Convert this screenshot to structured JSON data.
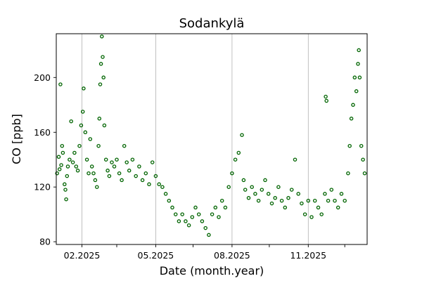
{
  "chart_data": {
    "type": "scatter",
    "title": "Sodankylä",
    "xlabel": "Date (month.year)",
    "ylabel": "CO [ppb]",
    "x_ticks": [
      {
        "date": "2025-02-01",
        "label": "02.2025"
      },
      {
        "date": "2025-03-15",
        "label": ""
      },
      {
        "date": "2025-05-01",
        "label": "05.2025"
      },
      {
        "date": "2025-06-15",
        "label": ""
      },
      {
        "date": "2025-08-01",
        "label": "08.2025"
      },
      {
        "date": "2025-09-15",
        "label": ""
      },
      {
        "date": "2025-11-01",
        "label": "11.2025"
      },
      {
        "date": "2025-12-15",
        "label": ""
      }
    ],
    "x_grid_dates": [
      "2025-02-01",
      "2025-05-01",
      "2025-08-01",
      "2025-11-01"
    ],
    "y_ticks": [
      80,
      120,
      160,
      200
    ],
    "xlim": [
      "2025-01-01",
      "2026-01-11"
    ],
    "ylim": [
      78,
      232
    ],
    "grid": "vertical lines at labeled ticks",
    "marker": "hollow circle",
    "series_color": "#006400",
    "series": [
      {
        "points": [
          [
            "2025-01-02",
            130
          ],
          [
            "2025-01-04",
            142
          ],
          [
            "2025-01-05",
            133
          ],
          [
            "2025-01-06",
            195
          ],
          [
            "2025-01-07",
            136
          ],
          [
            "2025-01-08",
            150
          ],
          [
            "2025-01-09",
            145
          ],
          [
            "2025-01-11",
            122
          ],
          [
            "2025-01-12",
            118
          ],
          [
            "2025-01-13",
            111
          ],
          [
            "2025-01-14",
            128
          ],
          [
            "2025-01-15",
            135
          ],
          [
            "2025-01-17",
            140
          ],
          [
            "2025-01-19",
            168
          ],
          [
            "2025-01-21",
            138
          ],
          [
            "2025-01-23",
            145
          ],
          [
            "2025-01-25",
            135
          ],
          [
            "2025-01-27",
            132
          ],
          [
            "2025-01-29",
            150
          ],
          [
            "2025-01-31",
            165
          ],
          [
            "2025-02-02",
            175
          ],
          [
            "2025-02-03",
            192
          ],
          [
            "2025-02-05",
            160
          ],
          [
            "2025-02-07",
            140
          ],
          [
            "2025-02-09",
            130
          ],
          [
            "2025-02-11",
            155
          ],
          [
            "2025-02-13",
            135
          ],
          [
            "2025-02-15",
            130
          ],
          [
            "2025-02-17",
            125
          ],
          [
            "2025-02-19",
            120
          ],
          [
            "2025-02-21",
            150
          ],
          [
            "2025-02-22",
            170
          ],
          [
            "2025-02-23",
            195
          ],
          [
            "2025-02-24",
            210
          ],
          [
            "2025-02-25",
            230
          ],
          [
            "2025-02-26",
            215
          ],
          [
            "2025-02-27",
            200
          ],
          [
            "2025-02-28",
            165
          ],
          [
            "2025-03-02",
            140
          ],
          [
            "2025-03-04",
            132
          ],
          [
            "2025-03-06",
            128
          ],
          [
            "2025-03-09",
            138
          ],
          [
            "2025-03-12",
            135
          ],
          [
            "2025-03-15",
            140
          ],
          [
            "2025-03-18",
            130
          ],
          [
            "2025-03-21",
            125
          ],
          [
            "2025-03-24",
            150
          ],
          [
            "2025-03-27",
            138
          ],
          [
            "2025-03-30",
            132
          ],
          [
            "2025-04-03",
            140
          ],
          [
            "2025-04-07",
            128
          ],
          [
            "2025-04-11",
            135
          ],
          [
            "2025-04-15",
            125
          ],
          [
            "2025-04-19",
            130
          ],
          [
            "2025-04-23",
            122
          ],
          [
            "2025-04-27",
            138
          ],
          [
            "2025-05-01",
            128
          ],
          [
            "2025-05-05",
            122
          ],
          [
            "2025-05-09",
            120
          ],
          [
            "2025-05-13",
            115
          ],
          [
            "2025-05-17",
            110
          ],
          [
            "2025-05-21",
            105
          ],
          [
            "2025-05-25",
            100
          ],
          [
            "2025-05-29",
            95
          ],
          [
            "2025-06-02",
            100
          ],
          [
            "2025-06-06",
            95
          ],
          [
            "2025-06-10",
            92
          ],
          [
            "2025-06-14",
            98
          ],
          [
            "2025-06-18",
            105
          ],
          [
            "2025-06-22",
            100
          ],
          [
            "2025-06-26",
            95
          ],
          [
            "2025-06-30",
            90
          ],
          [
            "2025-07-04",
            85
          ],
          [
            "2025-07-08",
            100
          ],
          [
            "2025-07-12",
            105
          ],
          [
            "2025-07-16",
            98
          ],
          [
            "2025-07-20",
            110
          ],
          [
            "2025-07-24",
            105
          ],
          [
            "2025-07-28",
            120
          ],
          [
            "2025-08-01",
            130
          ],
          [
            "2025-08-05",
            140
          ],
          [
            "2025-08-09",
            145
          ],
          [
            "2025-08-13",
            158
          ],
          [
            "2025-08-15",
            125
          ],
          [
            "2025-08-17",
            118
          ],
          [
            "2025-08-21",
            112
          ],
          [
            "2025-08-25",
            120
          ],
          [
            "2025-08-29",
            115
          ],
          [
            "2025-09-02",
            110
          ],
          [
            "2025-09-06",
            118
          ],
          [
            "2025-09-10",
            125
          ],
          [
            "2025-09-14",
            115
          ],
          [
            "2025-09-18",
            108
          ],
          [
            "2025-09-22",
            112
          ],
          [
            "2025-09-26",
            120
          ],
          [
            "2025-09-30",
            110
          ],
          [
            "2025-10-04",
            105
          ],
          [
            "2025-10-08",
            112
          ],
          [
            "2025-10-12",
            118
          ],
          [
            "2025-10-16",
            140
          ],
          [
            "2025-10-20",
            115
          ],
          [
            "2025-10-24",
            108
          ],
          [
            "2025-10-28",
            100
          ],
          [
            "2025-11-01",
            110
          ],
          [
            "2025-11-05",
            98
          ],
          [
            "2025-11-09",
            110
          ],
          [
            "2025-11-13",
            105
          ],
          [
            "2025-11-17",
            100
          ],
          [
            "2025-11-21",
            115
          ],
          [
            "2025-11-22",
            186
          ],
          [
            "2025-11-23",
            183
          ],
          [
            "2025-11-25",
            110
          ],
          [
            "2025-11-29",
            118
          ],
          [
            "2025-12-03",
            110
          ],
          [
            "2025-12-07",
            105
          ],
          [
            "2025-12-11",
            115
          ],
          [
            "2025-12-15",
            110
          ],
          [
            "2025-12-19",
            130
          ],
          [
            "2025-12-21",
            150
          ],
          [
            "2025-12-23",
            170
          ],
          [
            "2025-12-25",
            180
          ],
          [
            "2025-12-27",
            200
          ],
          [
            "2025-12-29",
            190
          ],
          [
            "2025-12-31",
            210
          ],
          [
            "2026-01-01",
            220
          ],
          [
            "2026-01-02",
            200
          ],
          [
            "2026-01-04",
            150
          ],
          [
            "2026-01-06",
            140
          ],
          [
            "2026-01-08",
            130
          ]
        ]
      }
    ]
  }
}
